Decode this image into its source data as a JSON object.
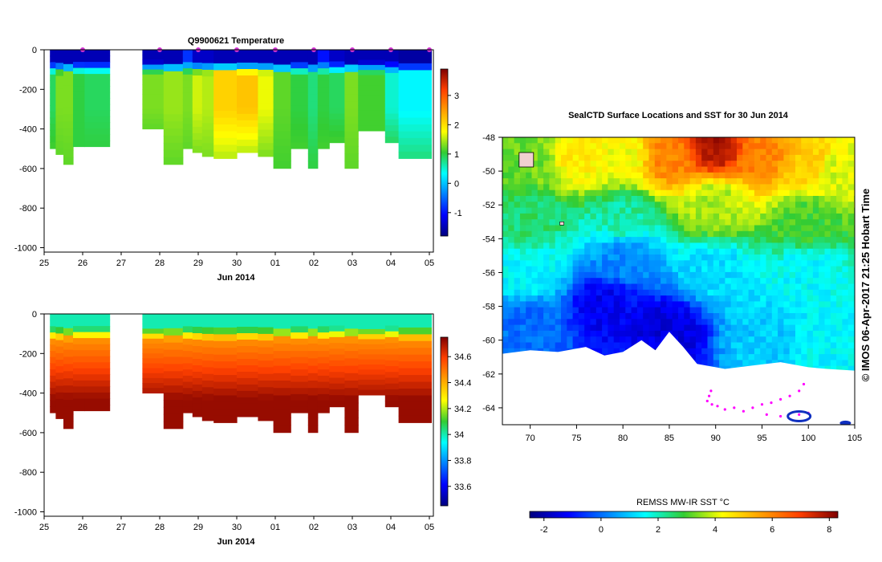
{
  "temp_title": "Q9900621  Temperature",
  "credit": "© IMOS 06-Apr-2017 21:25 Hobart Time",
  "chart_data": [
    {
      "type": "heatmap",
      "id": "temperature",
      "title": "Q9900621  Temperature",
      "xlabel": "Jun 2014",
      "ylabel": "",
      "x_ticks": [
        "25",
        "26",
        "27",
        "28",
        "29",
        "30",
        "01",
        "02",
        "03",
        "04",
        "05"
      ],
      "y_ticks": [
        "0",
        "-200",
        "-400",
        "-600",
        "-800",
        "-1000"
      ],
      "ylim": [
        -1000,
        0
      ],
      "colorbar_ticks": [
        "3",
        "2",
        "1",
        "0",
        "-1"
      ],
      "clim": [
        -1.8,
        3.9
      ],
      "profile_markers_days": [
        26,
        28,
        29,
        30,
        31,
        32,
        33,
        34,
        35
      ],
      "profiles": [
        {
          "day": 25.15,
          "width": 0.15,
          "depth": 500,
          "surface": -1.5,
          "mid": 0.9,
          "deep": 1.1
        },
        {
          "day": 25.3,
          "width": 0.2,
          "depth": 530,
          "surface": -1.5,
          "mid": 1.3,
          "deep": 1.2
        },
        {
          "day": 25.5,
          "width": 0.25,
          "depth": 580,
          "surface": -1.5,
          "mid": 1.3,
          "deep": 1.2
        },
        {
          "day": 25.75,
          "width": 0.3,
          "depth": 490,
          "surface": -1.5,
          "mid": 1.0,
          "deep": 1.0
        },
        {
          "day": 26.05,
          "width": 0.65,
          "depth": 490,
          "surface": -1.5,
          "mid": 0.9,
          "deep": 1.0
        },
        {
          "day": 27.55,
          "width": 0.55,
          "depth": 400,
          "surface": -1.5,
          "mid": 1.3,
          "deep": 1.2
        },
        {
          "day": 28.1,
          "width": 0.5,
          "depth": 580,
          "surface": -1.5,
          "mid": 1.4,
          "deep": 1.2
        },
        {
          "day": 28.6,
          "width": 0.25,
          "depth": 500,
          "surface": -0.8,
          "mid": 1.3,
          "deep": 1.2
        },
        {
          "day": 28.85,
          "width": 0.25,
          "depth": 520,
          "surface": -1.4,
          "mid": 1.6,
          "deep": 1.3
        },
        {
          "day": 29.1,
          "width": 0.3,
          "depth": 540,
          "surface": -1.4,
          "mid": 1.5,
          "deep": 1.3
        },
        {
          "day": 29.4,
          "width": 0.6,
          "depth": 550,
          "surface": -1.5,
          "mid": 2.1,
          "deep": 1.5
        },
        {
          "day": 30.0,
          "width": 0.55,
          "depth": 520,
          "surface": -1.5,
          "mid": 2.2,
          "deep": 1.5
        },
        {
          "day": 30.55,
          "width": 0.4,
          "depth": 540,
          "surface": -1.5,
          "mid": 1.7,
          "deep": 1.3
        },
        {
          "day": 30.95,
          "width": 0.45,
          "depth": 600,
          "surface": -1.5,
          "mid": 1.2,
          "deep": 1.1
        },
        {
          "day": 31.4,
          "width": 0.45,
          "depth": 500,
          "surface": -1.5,
          "mid": 1.0,
          "deep": 1.1
        },
        {
          "day": 31.85,
          "width": 0.25,
          "depth": 600,
          "surface": -1.5,
          "mid": 0.8,
          "deep": 1.0
        },
        {
          "day": 32.1,
          "width": 0.3,
          "depth": 500,
          "surface": -1.0,
          "mid": 1.0,
          "deep": 1.1
        },
        {
          "day": 32.4,
          "width": 0.4,
          "depth": 470,
          "surface": -1.4,
          "mid": 0.9,
          "deep": 1.1
        },
        {
          "day": 32.8,
          "width": 0.35,
          "depth": 600,
          "surface": -1.5,
          "mid": 1.3,
          "deep": 1.2
        },
        {
          "day": 33.15,
          "width": 0.7,
          "depth": 410,
          "surface": -1.5,
          "mid": 1.1,
          "deep": 1.1
        },
        {
          "day": 33.85,
          "width": 0.35,
          "depth": 470,
          "surface": -1.5,
          "mid": 0.5,
          "deep": 0.9
        },
        {
          "day": 34.2,
          "width": 0.85,
          "depth": 550,
          "surface": -1.6,
          "mid": 0.3,
          "deep": 0.8
        }
      ]
    },
    {
      "type": "heatmap",
      "id": "salinity",
      "title": "",
      "xlabel": "Jun 2014",
      "ylabel": "",
      "x_ticks": [
        "25",
        "26",
        "27",
        "28",
        "29",
        "30",
        "01",
        "02",
        "03",
        "04",
        "05"
      ],
      "y_ticks": [
        "0",
        "-200",
        "-400",
        "-600",
        "-800",
        "-1000"
      ],
      "ylim": [
        -1000,
        0
      ],
      "colorbar_ticks": [
        "34.6",
        "34.4",
        "34.2",
        "34",
        "33.8",
        "33.6"
      ],
      "clim": [
        33.45,
        34.75
      ],
      "profiles_depths": [
        500,
        530,
        580,
        490,
        490,
        400,
        580,
        500,
        520,
        540,
        550,
        520,
        540,
        600,
        500,
        600,
        500,
        470,
        600,
        410,
        470,
        550
      ]
    },
    {
      "type": "heatmap",
      "id": "sst_map",
      "title": "SealCTD Surface Locations and SST for 30 Jun 2014",
      "xlabel": "",
      "ylabel": "",
      "x_ticks": [
        "70",
        "75",
        "80",
        "85",
        "90",
        "95",
        "100",
        "105"
      ],
      "y_ticks": [
        "-48",
        "-50",
        "-52",
        "-54",
        "-56",
        "-58",
        "-60",
        "-62",
        "-64"
      ],
      "xlim": [
        67,
        105
      ],
      "ylim": [
        -65,
        -48
      ],
      "colorbar_label": "REMSS MW-IR SST °C",
      "colorbar_ticks": [
        "-2",
        "0",
        "2",
        "4",
        "6",
        "8"
      ],
      "clim": [
        -2.5,
        8.3
      ],
      "sst_field_description_points": [
        {
          "lon": 70,
          "lat": -49,
          "value": 3.3
        },
        {
          "lon": 75,
          "lat": -49,
          "value": 4.5
        },
        {
          "lon": 80,
          "lat": -49,
          "value": 4.2
        },
        {
          "lon": 85,
          "lat": -49,
          "value": 6.0
        },
        {
          "lon": 90,
          "lat": -48.5,
          "value": 7.8
        },
        {
          "lon": 95,
          "lat": -49,
          "value": 6.0
        },
        {
          "lon": 100,
          "lat": -49.5,
          "value": 5.0
        },
        {
          "lon": 103,
          "lat": -50,
          "value": 4.0
        },
        {
          "lon": 70,
          "lat": -53,
          "value": 2.5
        },
        {
          "lon": 80,
          "lat": -53,
          "value": 2.2
        },
        {
          "lon": 90,
          "lat": -52,
          "value": 3.7
        },
        {
          "lon": 100,
          "lat": -53,
          "value": 3.0
        },
        {
          "lon": 70,
          "lat": -56,
          "value": 1.5
        },
        {
          "lon": 80,
          "lat": -55,
          "value": 0.3
        },
        {
          "lon": 90,
          "lat": -56,
          "value": 1.2
        },
        {
          "lon": 100,
          "lat": -56,
          "value": 1.5
        },
        {
          "lon": 70,
          "lat": -59,
          "value": 0.0
        },
        {
          "lon": 78,
          "lat": -58,
          "value": -1.3
        },
        {
          "lon": 85,
          "lat": -59.5,
          "value": -1.5
        },
        {
          "lon": 95,
          "lat": -60,
          "value": 1.0
        },
        {
          "lon": 102,
          "lat": -60.5,
          "value": 1.5
        }
      ]
    }
  ]
}
